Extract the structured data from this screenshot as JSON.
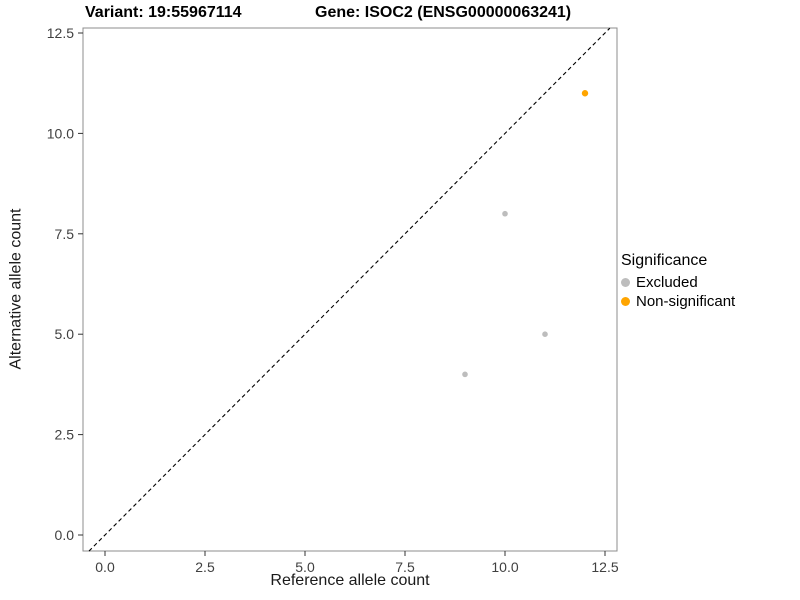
{
  "titles": {
    "left": "Variant: 19:55967114",
    "right": "Gene: ISOC2 (ENSG00000063241)"
  },
  "chart_data": {
    "type": "scatter",
    "title": "Variant: 19:55967114   Gene: ISOC2 (ENSG00000063241)",
    "xlabel": "Reference allele count",
    "ylabel": "Alternative allele count",
    "xlim": [
      0,
      12.5
    ],
    "ylim": [
      0,
      12.5
    ],
    "x_ticks": [
      0,
      2.5,
      5,
      7.5,
      10,
      12.5
    ],
    "y_ticks": [
      0,
      2.5,
      5,
      7.5,
      10,
      12.5
    ],
    "x_tick_labels": [
      "0.0",
      "2.5",
      "5.0",
      "7.5",
      "10.0",
      "12.5"
    ],
    "y_tick_labels": [
      "0.0",
      "2.5",
      "5.0",
      "7.5",
      "10.0",
      "12.5"
    ],
    "grid": false,
    "series": [
      {
        "name": "Excluded",
        "color": "#bdbdbd",
        "radius": 2.8,
        "points": [
          [
            9,
            4
          ],
          [
            10,
            8
          ],
          [
            11,
            5
          ]
        ]
      },
      {
        "name": "Non-significant",
        "color": "#FFA500",
        "radius": 3.2,
        "points": [
          [
            12,
            11
          ]
        ]
      }
    ],
    "identity_line": {
      "style": "dashed",
      "color": "#000000",
      "from": -0.4,
      "to": 12.62
    },
    "legend": {
      "title": "Significance",
      "position": "right"
    }
  }
}
